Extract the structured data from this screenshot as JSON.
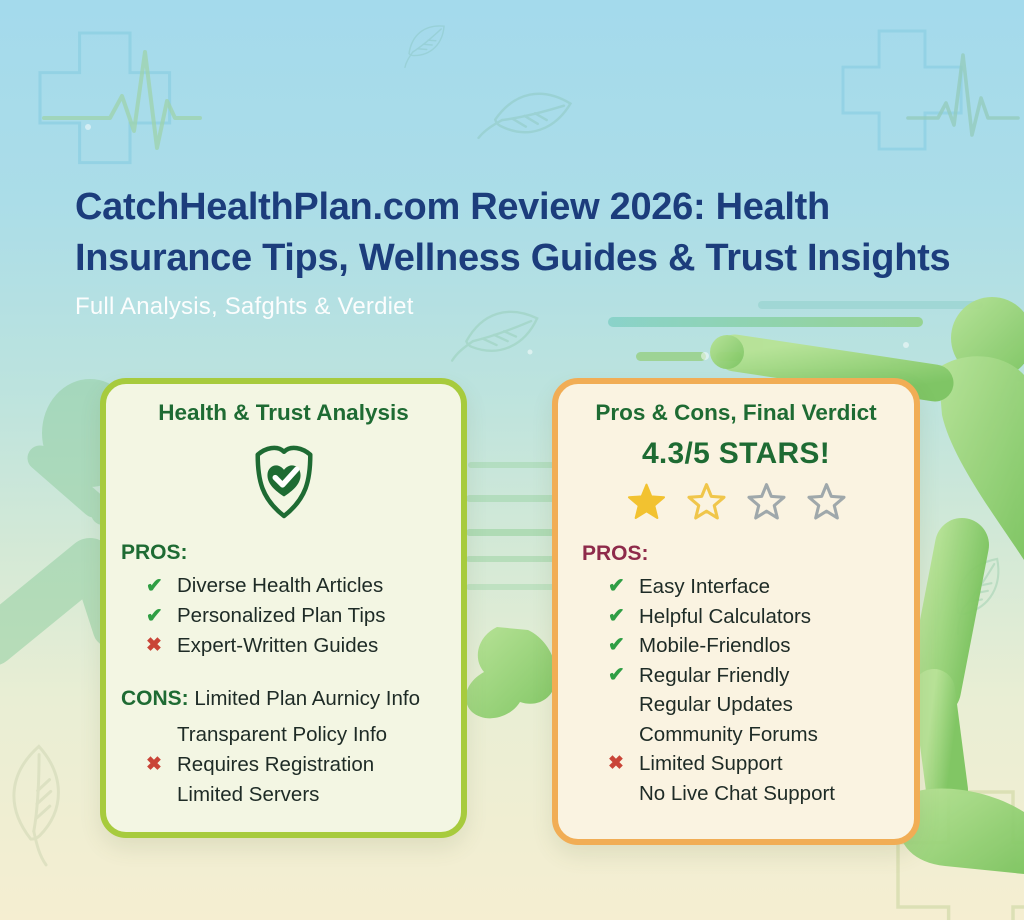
{
  "header": {
    "title_lines": [
      "CatchHealthPlan.com Review 2026: Health",
      "Insurance Tips, Wellness Guides & Trust Insights"
    ],
    "subtitle": "Full Analysis, Safghts & Verdiet"
  },
  "left_card": {
    "title": "Health & Trust Analysis",
    "icon": "shield-heart-check-icon",
    "pros_label": "PROS:",
    "pros_items": [
      {
        "icon": "check",
        "text": "Diverse Health Articles"
      },
      {
        "icon": "check",
        "text": "Personalized Plan Tips"
      },
      {
        "icon": "cross",
        "text": "Expert-Written Guides"
      }
    ],
    "cons_label": "CONS:",
    "cons_inline_text": "Limited Plan Aurnicy Info",
    "cons_items": [
      {
        "icon": "none",
        "text": "Transparent Policy Info"
      },
      {
        "icon": "cross",
        "text": "Requires Registration"
      },
      {
        "icon": "none",
        "text": "Limited Servers"
      }
    ]
  },
  "right_card": {
    "title": "Pros & Cons, Final Verdict",
    "rating_text": "4.3/5 STARS!",
    "stars": [
      "filled-yellow",
      "outline-yellow",
      "outline-gray",
      "outline-gray"
    ],
    "pros_label": "PROS:",
    "items": [
      {
        "icon": "check",
        "text": "Easy Interface"
      },
      {
        "icon": "check",
        "text": "Helpful Calculators"
      },
      {
        "icon": "check",
        "text": "Mobile-Friendlos"
      },
      {
        "icon": "check",
        "text": "Regular Friendly"
      },
      {
        "icon": "none",
        "text": "Regular Updates"
      },
      {
        "icon": "none",
        "text": "Community Forums"
      },
      {
        "icon": "cross",
        "text": "Limited Support"
      },
      {
        "icon": "none",
        "text": "No Live Chat Support"
      }
    ]
  },
  "icons": {
    "check_glyph": "✔",
    "cross_glyph": "✖",
    "shield": "shield-heart-check-icon"
  },
  "decorations": [
    "cross-ecg-top-left-icon",
    "cross-ecg-top-right-icon",
    "cross-bottom-right-icon",
    "leaf-icon",
    "speed-lines",
    "runner-silhouette-right",
    "runner-silhouette-left",
    "sparkles"
  ],
  "colors": {
    "title": "#1c3d7c",
    "subtitle": "#ffffff",
    "green_heading": "#1e6b33",
    "maroon_heading": "#8e2a4a",
    "check": "#2f9e44",
    "cross": "#c94437",
    "star_filled": "#f2c230",
    "star_outline_yellow": "#f0c64a",
    "star_outline_gray": "#9fa8ab",
    "left_card_border": "#a7cb3d",
    "left_card_bg": "#f3f6e3",
    "right_card_border": "#f1ad55",
    "right_card_bg": "#faf3e1"
  }
}
